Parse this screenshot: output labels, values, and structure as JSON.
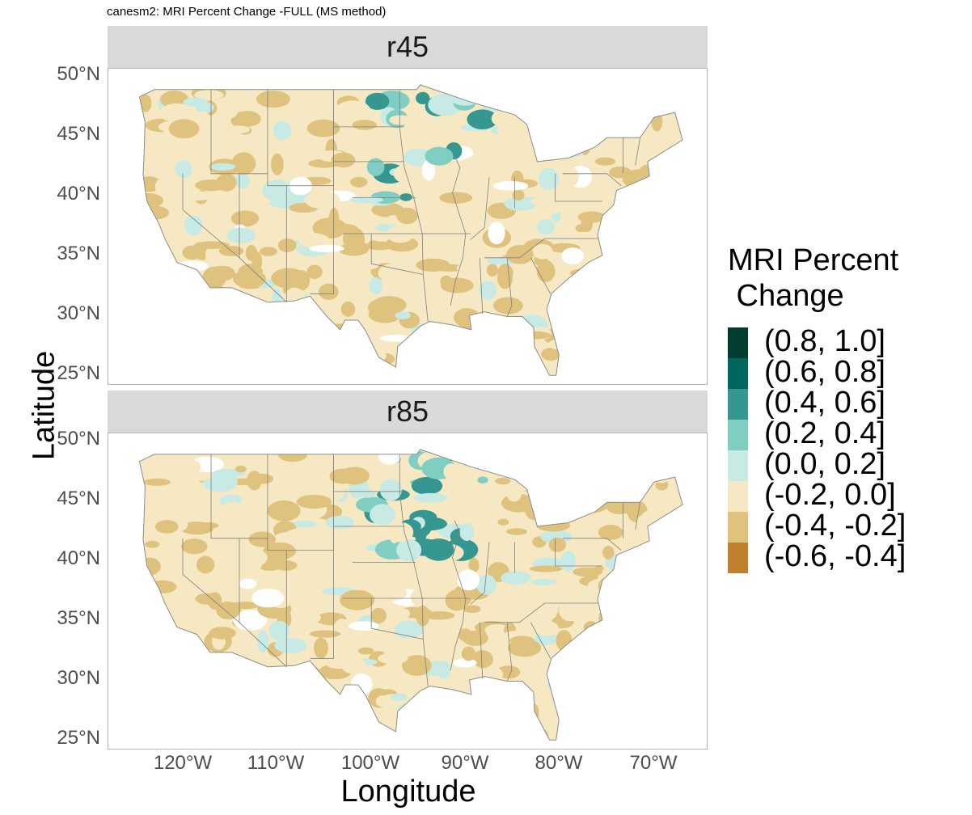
{
  "title": "canesm2: MRI Percent Change -FULL (MS method)",
  "panels": [
    {
      "label": "r45"
    },
    {
      "label": "r85"
    }
  ],
  "axes": {
    "x_title": "Longitude",
    "y_title": "Latitude",
    "lon_ticks": [
      "120°W",
      "110°W",
      "100°W",
      "90°W",
      "80°W",
      "70°W"
    ],
    "lat_ticks": [
      "50°N",
      "45°N",
      "40°N",
      "35°N",
      "30°N",
      "25°N"
    ]
  },
  "legend": {
    "title": "MRI Percent\n Change",
    "items": [
      {
        "label": "(0.8, 1.0]",
        "color": "#003c30"
      },
      {
        "label": "(0.6, 0.8]",
        "color": "#01665e"
      },
      {
        "label": "(0.4, 0.6]",
        "color": "#35978f"
      },
      {
        "label": "(0.2, 0.4]",
        "color": "#80cdc1"
      },
      {
        "label": "(0.0, 0.2]",
        "color": "#c7eae5"
      },
      {
        "label": "(-0.2, 0.0]",
        "color": "#f6e8c3"
      },
      {
        "label": "(-0.4, -0.2]",
        "color": "#dfc27d"
      },
      {
        "label": "(-0.6, -0.4]",
        "color": "#bf812d"
      }
    ]
  }
}
